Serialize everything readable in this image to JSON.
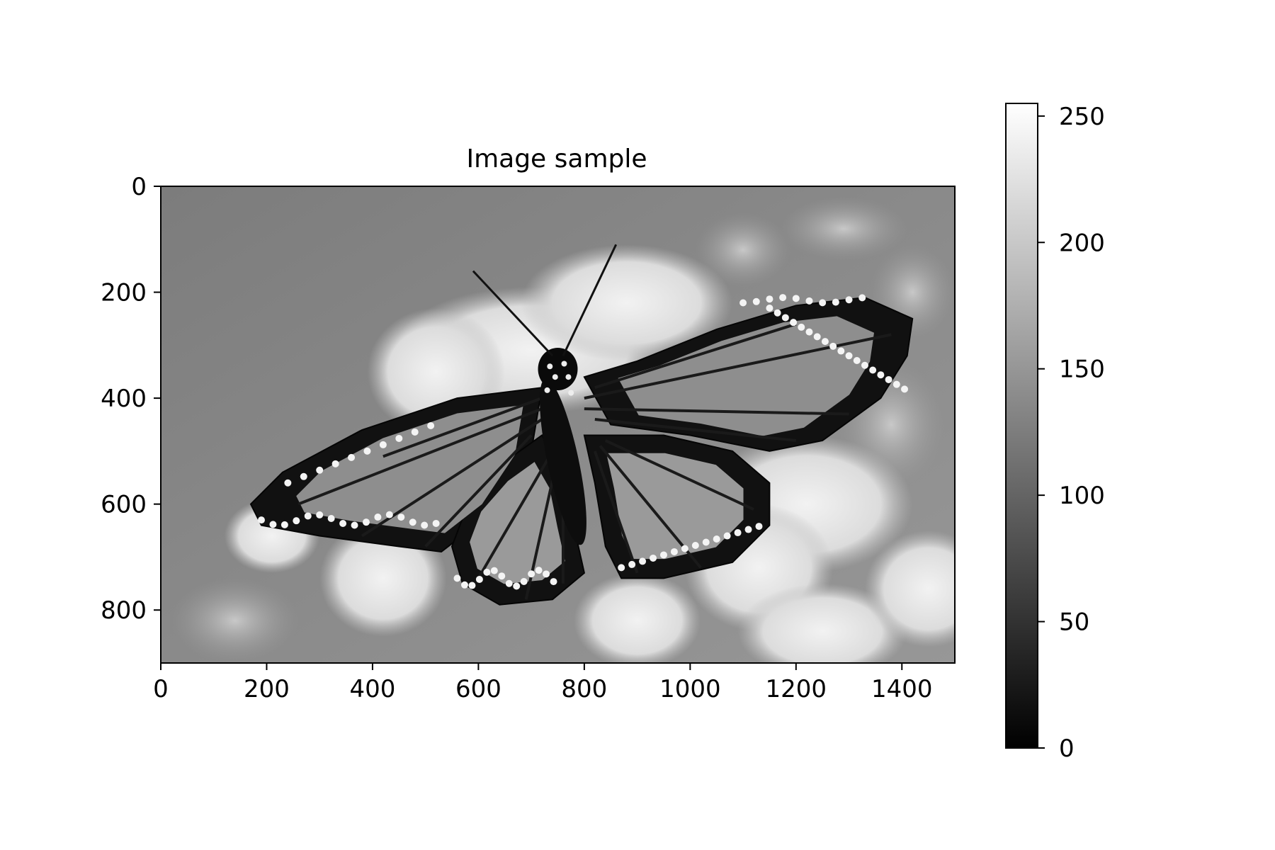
{
  "chart_data": {
    "type": "heatmap",
    "title": "Image sample",
    "xlabel": "",
    "ylabel": "",
    "image_content": "grayscale photograph of a monarch butterfly with wings spread, resting on clusters of white flowers",
    "xlim": [
      0,
      1500
    ],
    "ylim": [
      900,
      0
    ],
    "x_ticks": [
      0,
      200,
      400,
      600,
      800,
      1000,
      1200,
      1400
    ],
    "y_ticks": [
      0,
      200,
      400,
      600,
      800
    ],
    "colormap": "gray",
    "colorbar": {
      "range": [
        0,
        255
      ],
      "ticks": [
        0,
        50,
        100,
        150,
        200,
        250
      ]
    }
  }
}
